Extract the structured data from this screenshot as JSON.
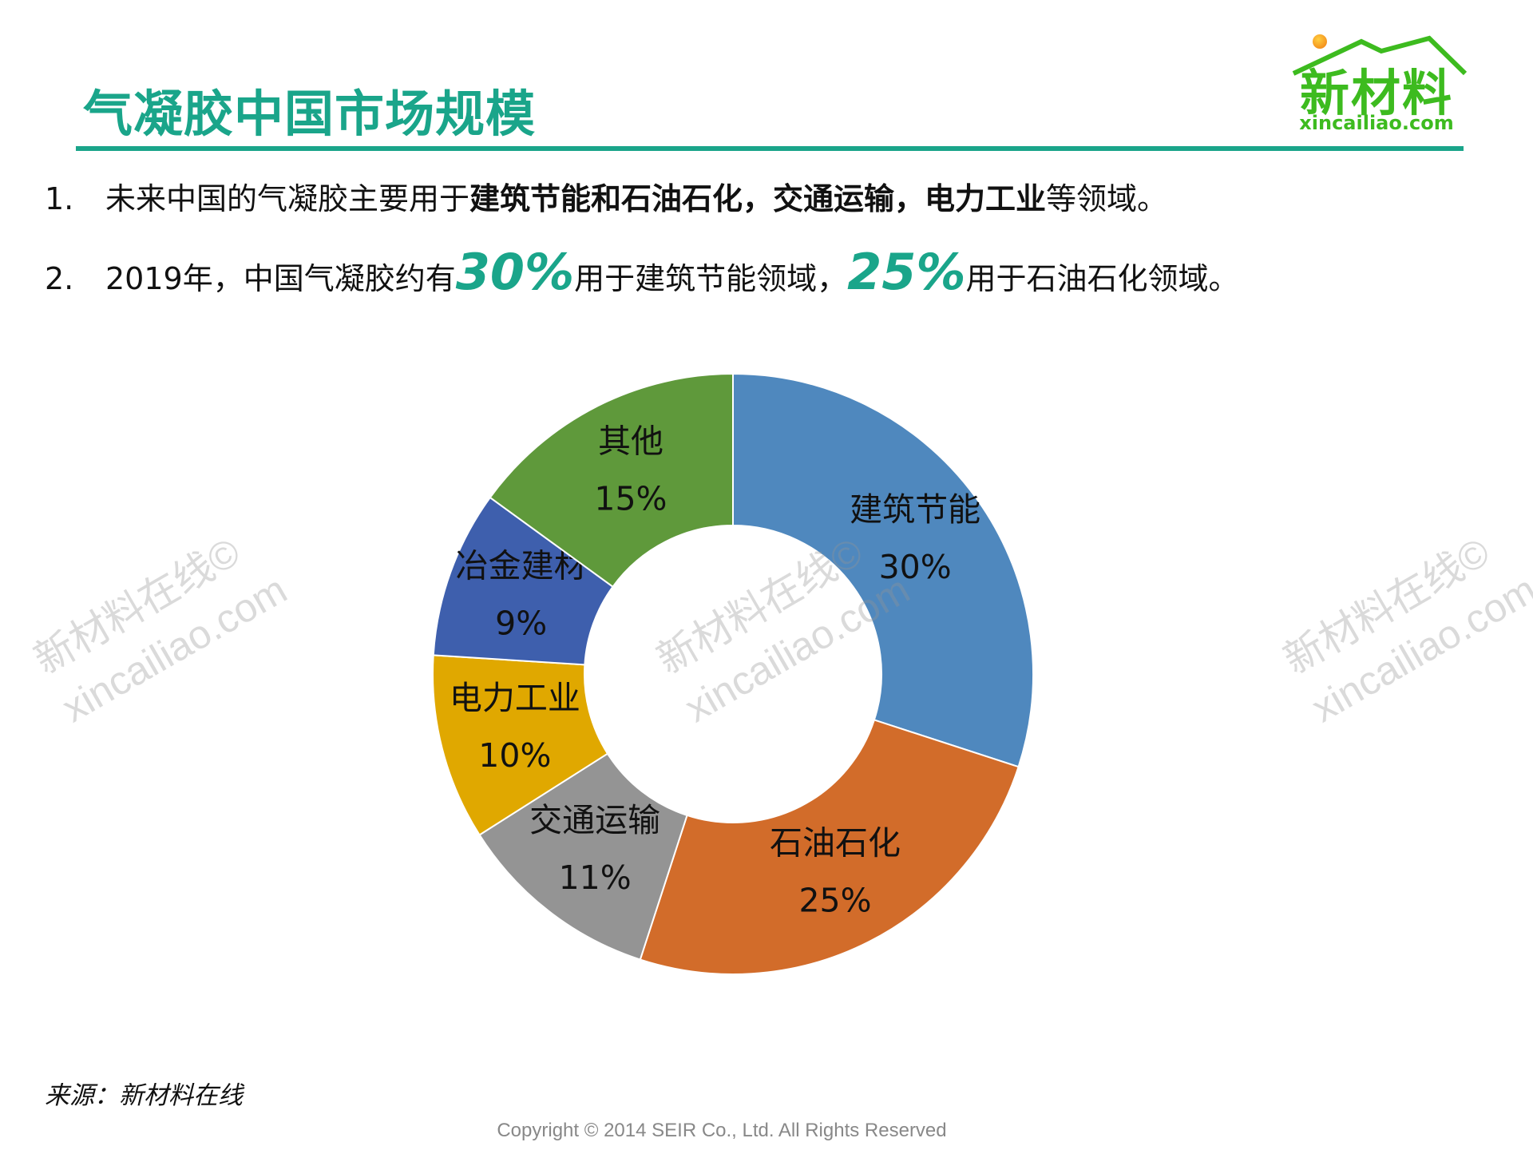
{
  "header": {
    "title": "气凝胶中国市场规模"
  },
  "logo": {
    "name_zh": "新材料",
    "url_text": "xincailiao.com"
  },
  "bullets": [
    {
      "num": "1.",
      "pre": "未来中国的气凝胶主要用于",
      "bold": "建筑节能和石油石化，交通运输，电力工业",
      "post": "等领域。"
    },
    {
      "num": "2.",
      "pre": "2019年，中国气凝胶约有",
      "hl1": "30%",
      "mid": "用于建筑节能领域，",
      "hl2": "25%",
      "post": "用于石油石化领域。"
    }
  ],
  "watermark": {
    "line1": "新材料在线©",
    "line2": "xincailiao.com"
  },
  "chart_data": {
    "type": "pie",
    "variant": "donut",
    "title": "",
    "categories": [
      "建筑节能",
      "石油石化",
      "交通运输",
      "电力工业",
      "冶金建材",
      "其他"
    ],
    "values": [
      30,
      25,
      11,
      10,
      9,
      15
    ],
    "labels": [
      "30%",
      "25%",
      "11%",
      "10%",
      "9%",
      "15%"
    ],
    "colors": [
      "#4f88be",
      "#d26c2a",
      "#949494",
      "#e0a800",
      "#3e5fad",
      "#5f993b"
    ],
    "start": "top",
    "direction": "clockwise"
  },
  "footer": {
    "source": "来源：新材料在线",
    "copyright": "Copyright © 2014  SEIR Co., Ltd. All Rights Reserved"
  }
}
